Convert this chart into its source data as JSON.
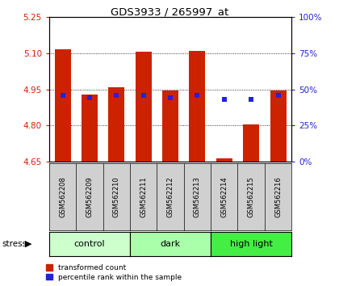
{
  "title": "GDS3933 / 265997_at",
  "samples": [
    "GSM562208",
    "GSM562209",
    "GSM562210",
    "GSM562211",
    "GSM562212",
    "GSM562213",
    "GSM562214",
    "GSM562215",
    "GSM562216"
  ],
  "red_values": [
    5.115,
    4.93,
    4.96,
    5.105,
    4.945,
    5.11,
    4.665,
    4.805,
    4.945
  ],
  "blue_values": [
    4.925,
    4.915,
    4.925,
    4.925,
    4.915,
    4.925,
    4.91,
    4.91,
    4.925
  ],
  "ymin": 4.65,
  "ymax": 5.25,
  "yticks": [
    4.65,
    4.8,
    4.95,
    5.1,
    5.25
  ],
  "right_yticks": [
    0,
    25,
    50,
    75,
    100
  ],
  "groups": [
    {
      "label": "control",
      "start": 0,
      "end": 3,
      "color": "#ccffcc"
    },
    {
      "label": "dark",
      "start": 3,
      "end": 6,
      "color": "#aaffaa"
    },
    {
      "label": "high light",
      "start": 6,
      "end": 9,
      "color": "#44ee44"
    }
  ],
  "bar_width": 0.6,
  "red_color": "#cc2200",
  "blue_color": "#2222dd",
  "base": 4.65,
  "bg_label": "#d0d0d0",
  "stress_label": "stress",
  "legend_red": "transformed count",
  "legend_blue": "percentile rank within the sample",
  "left_tick_color": "#cc2200",
  "right_tick_color": "#2222dd",
  "blue_marker_size": 5
}
